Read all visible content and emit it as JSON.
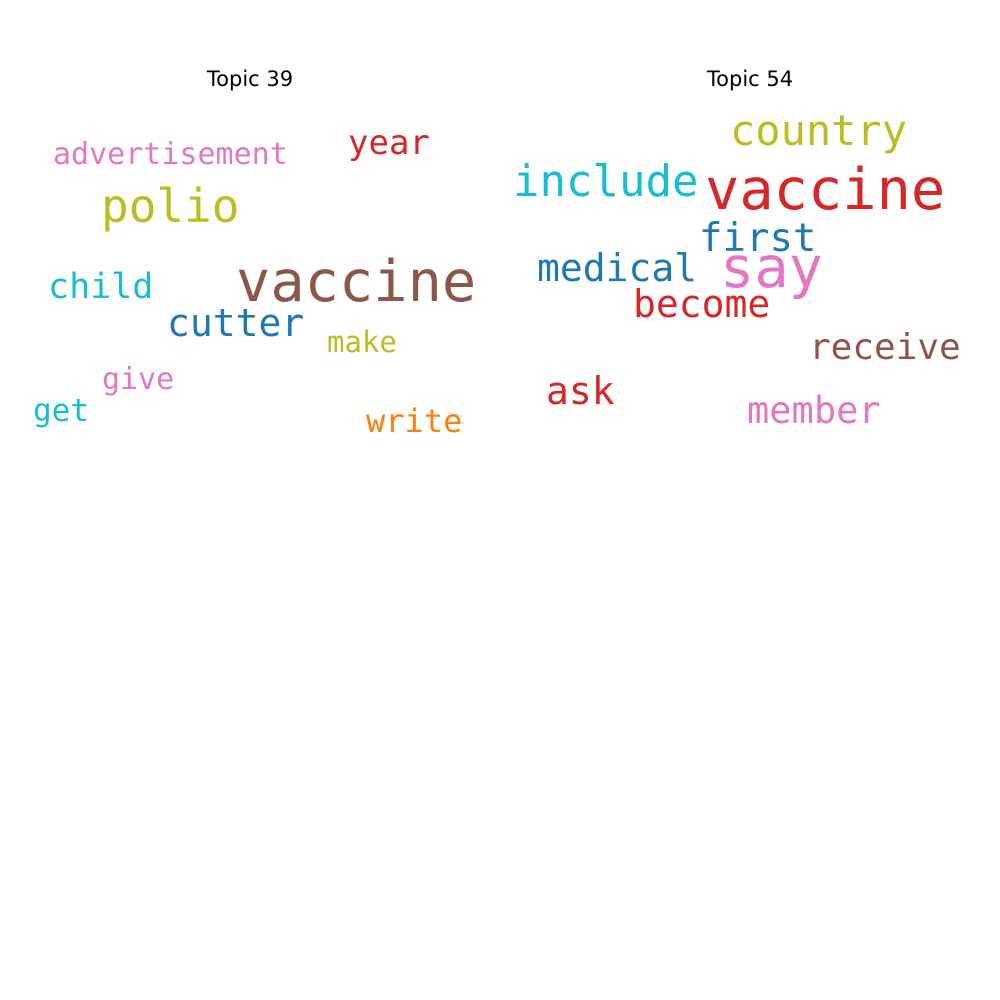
{
  "topics": [
    {
      "title": "Topic 39",
      "words": [
        {
          "text": "vaccine",
          "color": "#8c564b"
        },
        {
          "text": "polio",
          "color": "#bcbd22"
        },
        {
          "text": "cutter",
          "color": "#1f77b4"
        },
        {
          "text": "advertisement",
          "color": "#e377c2"
        },
        {
          "text": "year",
          "color": "#d62728"
        },
        {
          "text": "child",
          "color": "#17becf"
        },
        {
          "text": "make",
          "color": "#bcbd22"
        },
        {
          "text": "give",
          "color": "#e377c2"
        },
        {
          "text": "get",
          "color": "#17becf"
        },
        {
          "text": "write",
          "color": "#ff7f0e"
        }
      ]
    },
    {
      "title": "Topic 54",
      "words": [
        {
          "text": "vaccine",
          "color": "#d62728"
        },
        {
          "text": "say",
          "color": "#e377c2"
        },
        {
          "text": "country",
          "color": "#bcbd22"
        },
        {
          "text": "include",
          "color": "#17becf"
        },
        {
          "text": "first",
          "color": "#1f77b4"
        },
        {
          "text": "medical",
          "color": "#1f77b4"
        },
        {
          "text": "become",
          "color": "#d62728"
        },
        {
          "text": "receive",
          "color": "#8c564b"
        },
        {
          "text": "ask",
          "color": "#d62728"
        },
        {
          "text": "member",
          "color": "#e377c2"
        }
      ]
    }
  ]
}
